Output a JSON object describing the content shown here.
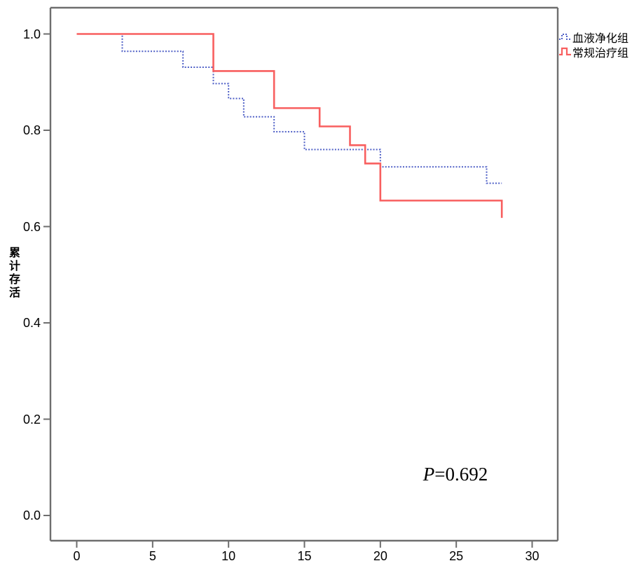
{
  "chart_data": {
    "type": "line",
    "subtype": "kaplan-meier-step-survival",
    "title": "",
    "xlabel": "",
    "ylabel": "累计存活",
    "xlim": [
      0,
      30
    ],
    "ylim": [
      0.0,
      1.0
    ],
    "x_ticks": [
      "0",
      "5",
      "10",
      "15",
      "20",
      "25",
      "30"
    ],
    "y_ticks": [
      "1.0",
      "0.8",
      "0.6",
      "0.4",
      "0.2",
      "0.0"
    ],
    "grid": false,
    "legend_position": "outside-right-top",
    "annotation": {
      "p_symbol": "P",
      "p_value_text": "=0.692",
      "full_text": "P=0.692"
    },
    "series": [
      {
        "name": "血液净化组",
        "color": "#4e5fc6",
        "line_style": "dotted",
        "end_t": 28,
        "steps": [
          [
            0,
            1.0
          ],
          [
            3,
            0.964
          ],
          [
            7,
            0.931
          ],
          [
            9,
            0.897
          ],
          [
            10,
            0.866
          ],
          [
            11,
            0.828
          ],
          [
            13,
            0.797
          ],
          [
            15,
            0.76
          ],
          [
            20,
            0.724
          ],
          [
            27,
            0.69
          ]
        ]
      },
      {
        "name": "常规治疗组",
        "color": "#f85f5f",
        "line_style": "solid",
        "end_t": 28,
        "steps": [
          [
            0,
            1.0
          ],
          [
            9,
            0.923
          ],
          [
            13,
            0.846
          ],
          [
            16,
            0.808
          ],
          [
            18,
            0.769
          ],
          [
            19,
            0.731
          ],
          [
            20,
            0.654
          ],
          [
            28,
            0.618
          ]
        ]
      }
    ]
  },
  "colors": {
    "axis": "#6e6e6e",
    "text": "#000000",
    "series_blue": "#4e5fc6",
    "series_red": "#f85f5f"
  }
}
